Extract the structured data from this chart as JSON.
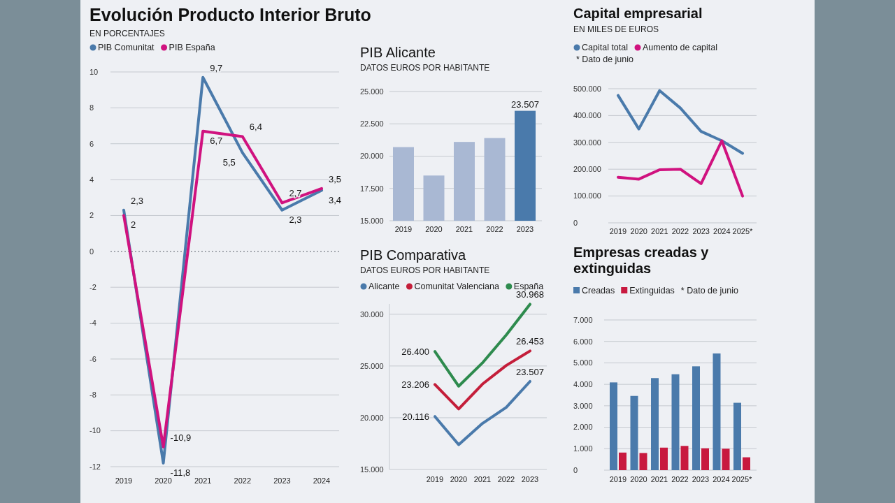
{
  "chart_data": [
    {
      "type": "line",
      "title": "Evolución Producto Interior Bruto",
      "subtitle": "EN PORCENTAJES",
      "categories": [
        "2019",
        "2020",
        "2021",
        "2022",
        "2023",
        "2024"
      ],
      "series": [
        {
          "name": "PIB Comunitat",
          "color": "#4a7aab",
          "values": [
            2.3,
            -11.8,
            9.7,
            5.5,
            2.3,
            3.4
          ],
          "value_labels": [
            "2,3",
            "-11,8",
            "9,7",
            "5,5",
            "2,3",
            "3,4"
          ]
        },
        {
          "name": "PIB España",
          "color": "#d0127f",
          "values": [
            2,
            -10.9,
            6.7,
            6.4,
            2.7,
            3.5
          ],
          "value_labels": [
            "2",
            "-10,9",
            "6,7",
            "6,4",
            "2,7",
            "3,5"
          ]
        }
      ],
      "ylim": [
        -12,
        10
      ],
      "yticks": [
        -12,
        -10,
        -8,
        -6,
        -4,
        -2,
        0,
        2,
        4,
        6,
        8,
        10
      ],
      "grid": "y",
      "legend": "top left",
      "marker": "none",
      "line_style": "solid",
      "ref_lines": [
        {
          "axis": "y",
          "value": 0,
          "line_style": "dotted",
          "color": "#7a7f86"
        }
      ]
    },
    {
      "type": "bar",
      "title": "PIB Alicante",
      "subtitle": "DATOS EUROS POR HABITANTE",
      "categories": [
        "2019",
        "2020",
        "2021",
        "2022",
        "2023"
      ],
      "values": [
        20700,
        18500,
        21100,
        21400,
        23507
      ],
      "colors": [
        "#a9b8d3",
        "#a9b8d3",
        "#a9b8d3",
        "#a9b8d3",
        "#4a7aab"
      ],
      "value_labels": [
        null,
        null,
        null,
        null,
        "23.507"
      ],
      "ylim": [
        15000,
        25000
      ],
      "yticks": [
        {
          "value": 15000,
          "label": "15.000"
        },
        {
          "value": 17500,
          "label": "17.500"
        },
        {
          "value": 20000,
          "label": "20.000"
        },
        {
          "value": 22500,
          "label": "22.500"
        },
        {
          "value": 25000,
          "label": "25.000"
        }
      ],
      "grid": "y"
    },
    {
      "type": "line",
      "title": "PIB Comparativa",
      "subtitle": "DATOS EUROS POR HABITANTE",
      "categories": [
        "2019",
        "2020",
        "2021",
        "2022",
        "2023"
      ],
      "series": [
        {
          "name": "Alicante",
          "color": "#4a7aab",
          "values": [
            20116,
            17400,
            19450,
            21000,
            23507
          ],
          "value_labels": [
            "20.116",
            null,
            null,
            null,
            "23.507"
          ]
        },
        {
          "name": "Comunitat Valenciana",
          "color": "#c41e3a",
          "values": [
            23206,
            20850,
            23250,
            25050,
            26453
          ],
          "value_labels": [
            "23.206",
            null,
            null,
            null,
            "26.453"
          ]
        },
        {
          "name": "España",
          "color": "#2e8b4e",
          "values": [
            26400,
            23050,
            25300,
            28000,
            30968
          ],
          "value_labels": [
            "26.400",
            null,
            null,
            null,
            "30.968"
          ]
        }
      ],
      "ylim": [
        15000,
        31000
      ],
      "yticks": [
        {
          "value": 15000,
          "label": "15.000"
        },
        {
          "value": 20000,
          "label": "20.000"
        },
        {
          "value": 25000,
          "label": "25.000"
        },
        {
          "value": 30000,
          "label": "30.000"
        }
      ],
      "grid": "y",
      "legend": "top left",
      "marker": "none",
      "line_style": "solid"
    },
    {
      "type": "line",
      "title": "Capital empresarial",
      "subtitle": "EN MILES DE EUROS",
      "annotations": [
        "* Dato de junio"
      ],
      "categories": [
        "2019",
        "2020",
        "2021",
        "2022",
        "2023",
        "2024",
        "2025*"
      ],
      "series": [
        {
          "name": "Capital total",
          "color": "#4a7aab",
          "values": [
            475000,
            350000,
            493000,
            428000,
            341000,
            306000,
            259000
          ]
        },
        {
          "name": "Aumento de capital",
          "color": "#d0127f",
          "values": [
            170000,
            163000,
            198000,
            200000,
            146000,
            306000,
            100000
          ]
        }
      ],
      "ylim": [
        0,
        500000
      ],
      "yticks": [
        0,
        {
          "value": 100000,
          "label": "100.000"
        },
        {
          "value": 200000,
          "label": "200.000"
        },
        {
          "value": 300000,
          "label": "300.000"
        },
        {
          "value": 400000,
          "label": "400.000"
        },
        {
          "value": 500000,
          "label": "500.000"
        }
      ],
      "grid": "y",
      "legend": "top left",
      "marker": "none",
      "line_style": "solid"
    },
    {
      "type": "bar",
      "title": "Empresas creadas y extinguidas",
      "annotations": [
        "* Dato de junio"
      ],
      "categories": [
        "2019",
        "2020",
        "2021",
        "2022",
        "2023",
        "2024",
        "2025*"
      ],
      "series": [
        {
          "name": "Creadas",
          "color": "#4a7aab",
          "values": [
            4090,
            3460,
            4290,
            4470,
            4840,
            5440,
            3140
          ]
        },
        {
          "name": "Extinguidas",
          "color": "#c8193f",
          "values": [
            820,
            800,
            1050,
            1130,
            1020,
            1000,
            600
          ]
        }
      ],
      "ylim": [
        0,
        7000
      ],
      "yticks": [
        0,
        {
          "value": 1000,
          "label": "1.000"
        },
        {
          "value": 2000,
          "label": "2.000"
        },
        {
          "value": 3000,
          "label": "3.000"
        },
        {
          "value": 4000,
          "label": "4.000"
        },
        {
          "value": 5000,
          "label": "5.000"
        },
        {
          "value": 6000,
          "label": "6.000"
        },
        {
          "value": 7000,
          "label": "7.000"
        }
      ],
      "grid": "y",
      "legend": "top left"
    }
  ]
}
